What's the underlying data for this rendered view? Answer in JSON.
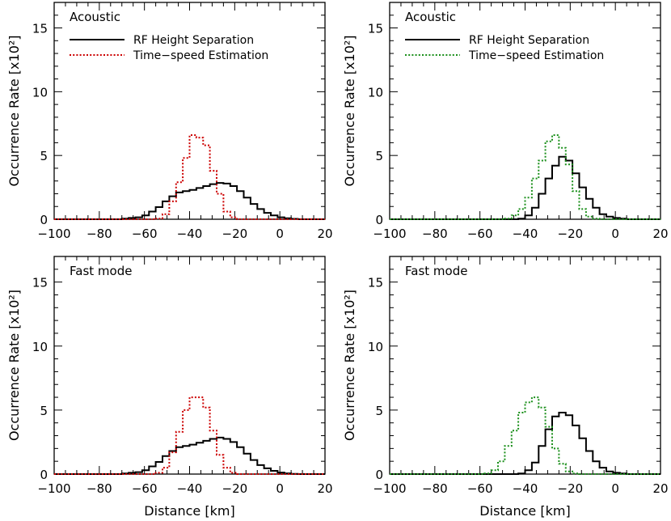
{
  "chart_data": [
    {
      "type": "line",
      "panel_label": "Acoustic",
      "ylabel": "Occurrence Rate [x10²]",
      "xlabel": "",
      "xlim": [
        -100,
        20
      ],
      "ylim": [
        0,
        17
      ],
      "xticks": [
        -100,
        -80,
        -60,
        -40,
        -20,
        0,
        20
      ],
      "yticks": [
        0,
        5,
        10,
        15
      ],
      "legend": "top-left",
      "bin_width": 3,
      "series": [
        {
          "name": "RF Height Separation",
          "color": "#000000",
          "dash": "solid",
          "x": [
            -100,
            -97,
            -94,
            -91,
            -88,
            -85,
            -82,
            -79,
            -76,
            -73,
            -70,
            -67,
            -64,
            -61,
            -58,
            -55,
            -52,
            -49,
            -46,
            -43,
            -40,
            -37,
            -34,
            -31,
            -28,
            -25,
            -22,
            -19,
            -16,
            -13,
            -10,
            -7,
            -4,
            -1,
            2,
            5,
            8,
            11,
            14,
            17
          ],
          "y": [
            0,
            0,
            0,
            0,
            0,
            0,
            0,
            0,
            0,
            0,
            0.05,
            0.1,
            0.15,
            0.3,
            0.6,
            0.95,
            1.4,
            1.8,
            2.1,
            2.2,
            2.3,
            2.45,
            2.6,
            2.75,
            2.85,
            2.8,
            2.6,
            2.2,
            1.7,
            1.2,
            0.8,
            0.5,
            0.3,
            0.15,
            0.08,
            0.03,
            0,
            0,
            0,
            0
          ]
        },
        {
          "name": "Time−speed Estimation",
          "color": "#cc0000",
          "dash": "dotted",
          "x": [
            -100,
            -97,
            -94,
            -91,
            -88,
            -85,
            -82,
            -79,
            -76,
            -73,
            -70,
            -67,
            -64,
            -61,
            -58,
            -55,
            -52,
            -49,
            -46,
            -43,
            -40,
            -37,
            -34,
            -31,
            -28,
            -25,
            -22,
            -19,
            -16,
            -13,
            -10,
            -7,
            -4,
            -1,
            2,
            5,
            8,
            11,
            14,
            17
          ],
          "y": [
            0,
            0,
            0,
            0,
            0,
            0,
            0,
            0,
            0,
            0,
            0,
            0,
            0,
            0,
            0,
            0.05,
            0.4,
            1.4,
            2.9,
            4.8,
            6.6,
            6.4,
            5.8,
            3.8,
            2.0,
            0.6,
            0.15,
            0,
            0,
            0,
            0,
            0,
            0,
            0,
            0,
            0,
            0,
            0,
            0,
            0
          ]
        }
      ]
    },
    {
      "type": "line",
      "panel_label": "Acoustic",
      "ylabel": "Occurrence Rate [x10²]",
      "xlabel": "",
      "xlim": [
        -100,
        20
      ],
      "ylim": [
        0,
        17
      ],
      "xticks": [
        -100,
        -80,
        -60,
        -40,
        -20,
        0,
        20
      ],
      "yticks": [
        0,
        5,
        10,
        15
      ],
      "legend": "top-left",
      "bin_width": 3,
      "series": [
        {
          "name": "RF Height Separation",
          "color": "#000000",
          "dash": "solid",
          "x": [
            -100,
            -97,
            -94,
            -91,
            -88,
            -85,
            -82,
            -79,
            -76,
            -73,
            -70,
            -67,
            -64,
            -61,
            -58,
            -55,
            -52,
            -49,
            -46,
            -43,
            -40,
            -37,
            -34,
            -31,
            -28,
            -25,
            -22,
            -19,
            -16,
            -13,
            -10,
            -7,
            -4,
            -1,
            2,
            5,
            8,
            11,
            14,
            17
          ],
          "y": [
            0,
            0,
            0,
            0,
            0,
            0,
            0,
            0,
            0,
            0,
            0,
            0,
            0,
            0,
            0,
            0,
            0,
            0,
            0,
            0.05,
            0.3,
            0.9,
            2.0,
            3.2,
            4.2,
            4.9,
            4.6,
            3.6,
            2.5,
            1.6,
            0.9,
            0.4,
            0.2,
            0.1,
            0.05,
            0,
            0,
            0,
            0,
            0
          ]
        },
        {
          "name": "Time−speed Estimation",
          "color": "#1a8f1a",
          "dash": "dotted",
          "x": [
            -100,
            -97,
            -94,
            -91,
            -88,
            -85,
            -82,
            -79,
            -76,
            -73,
            -70,
            -67,
            -64,
            -61,
            -58,
            -55,
            -52,
            -49,
            -46,
            -43,
            -40,
            -37,
            -34,
            -31,
            -28,
            -25,
            -22,
            -19,
            -16,
            -13,
            -10,
            -7,
            -4,
            -1,
            2,
            5,
            8,
            11,
            14,
            17
          ],
          "y": [
            0,
            0,
            0,
            0,
            0,
            0,
            0,
            0,
            0,
            0,
            0,
            0,
            0,
            0,
            0,
            0,
            0,
            0.05,
            0.3,
            0.8,
            1.7,
            3.2,
            4.6,
            6.1,
            6.6,
            5.6,
            4.3,
            2.2,
            0.8,
            0.2,
            0.05,
            0,
            0,
            0,
            0,
            0,
            0,
            0,
            0,
            0
          ]
        }
      ]
    },
    {
      "type": "line",
      "panel_label": "Fast mode",
      "ylabel": "Occurrence Rate [x10²]",
      "xlabel": "Distance [km]",
      "xlim": [
        -100,
        20
      ],
      "ylim": [
        0,
        17
      ],
      "xticks": [
        -100,
        -80,
        -60,
        -40,
        -20,
        0,
        20
      ],
      "yticks": [
        0,
        5,
        10,
        15
      ],
      "legend": "none",
      "bin_width": 3,
      "series": [
        {
          "name": "RF Height Separation",
          "color": "#000000",
          "dash": "solid",
          "x": [
            -100,
            -97,
            -94,
            -91,
            -88,
            -85,
            -82,
            -79,
            -76,
            -73,
            -70,
            -67,
            -64,
            -61,
            -58,
            -55,
            -52,
            -49,
            -46,
            -43,
            -40,
            -37,
            -34,
            -31,
            -28,
            -25,
            -22,
            -19,
            -16,
            -13,
            -10,
            -7,
            -4,
            -1,
            2,
            5,
            8,
            11,
            14,
            17
          ],
          "y": [
            0,
            0,
            0,
            0,
            0,
            0,
            0,
            0,
            0,
            0,
            0.05,
            0.1,
            0.15,
            0.3,
            0.6,
            0.95,
            1.4,
            1.8,
            2.1,
            2.2,
            2.3,
            2.45,
            2.6,
            2.75,
            2.85,
            2.75,
            2.5,
            2.1,
            1.6,
            1.1,
            0.7,
            0.45,
            0.25,
            0.12,
            0.06,
            0.02,
            0,
            0,
            0,
            0
          ]
        },
        {
          "name": "Time−speed Estimation",
          "color": "#cc0000",
          "dash": "dotted",
          "x": [
            -100,
            -97,
            -94,
            -91,
            -88,
            -85,
            -82,
            -79,
            -76,
            -73,
            -70,
            -67,
            -64,
            -61,
            -58,
            -55,
            -52,
            -49,
            -46,
            -43,
            -40,
            -37,
            -34,
            -31,
            -28,
            -25,
            -22,
            -19,
            -16,
            -13,
            -10,
            -7,
            -4,
            -1,
            2,
            5,
            8,
            11,
            14,
            17
          ],
          "y": [
            0,
            0,
            0,
            0,
            0,
            0,
            0,
            0,
            0,
            0,
            0,
            0,
            0,
            0,
            0,
            0.1,
            0.5,
            1.7,
            3.3,
            5.0,
            6.0,
            6.0,
            5.2,
            3.4,
            1.5,
            0.5,
            0.1,
            0,
            0,
            0,
            0,
            0,
            0,
            0,
            0,
            0,
            0,
            0,
            0,
            0
          ]
        }
      ]
    },
    {
      "type": "line",
      "panel_label": "Fast mode",
      "ylabel": "Occurrence Rate [x10²]",
      "xlabel": "Distance [km]",
      "xlim": [
        -100,
        20
      ],
      "ylim": [
        0,
        17
      ],
      "xticks": [
        -100,
        -80,
        -60,
        -40,
        -20,
        0,
        20
      ],
      "yticks": [
        0,
        5,
        10,
        15
      ],
      "legend": "none",
      "bin_width": 3,
      "series": [
        {
          "name": "RF Height Separation",
          "color": "#000000",
          "dash": "solid",
          "x": [
            -100,
            -97,
            -94,
            -91,
            -88,
            -85,
            -82,
            -79,
            -76,
            -73,
            -70,
            -67,
            -64,
            -61,
            -58,
            -55,
            -52,
            -49,
            -46,
            -43,
            -40,
            -37,
            -34,
            -31,
            -28,
            -25,
            -22,
            -19,
            -16,
            -13,
            -10,
            -7,
            -4,
            -1,
            2,
            5,
            8,
            11,
            14,
            17
          ],
          "y": [
            0,
            0,
            0,
            0,
            0,
            0,
            0,
            0,
            0,
            0,
            0,
            0,
            0,
            0,
            0,
            0,
            0,
            0,
            0,
            0.05,
            0.3,
            0.9,
            2.2,
            3.5,
            4.5,
            4.8,
            4.6,
            3.8,
            2.8,
            1.8,
            1.0,
            0.5,
            0.2,
            0.1,
            0.05,
            0,
            0,
            0,
            0,
            0
          ]
        },
        {
          "name": "Time−speed Estimation",
          "color": "#1a8f1a",
          "dash": "dotted",
          "x": [
            -100,
            -97,
            -94,
            -91,
            -88,
            -85,
            -82,
            -79,
            -76,
            -73,
            -70,
            -67,
            -64,
            -61,
            -58,
            -55,
            -52,
            -49,
            -46,
            -43,
            -40,
            -37,
            -34,
            -31,
            -28,
            -25,
            -22,
            -19,
            -16,
            -13,
            -10,
            -7,
            -4,
            -1,
            2,
            5,
            8,
            11,
            14,
            17
          ],
          "y": [
            0,
            0,
            0,
            0,
            0,
            0,
            0,
            0,
            0,
            0,
            0,
            0,
            0,
            0,
            0.05,
            0.3,
            1.0,
            2.2,
            3.4,
            4.8,
            5.6,
            6.0,
            5.2,
            3.7,
            2.0,
            0.8,
            0.2,
            0.05,
            0,
            0,
            0,
            0,
            0,
            0,
            0,
            0,
            0,
            0,
            0,
            0
          ]
        }
      ]
    }
  ]
}
